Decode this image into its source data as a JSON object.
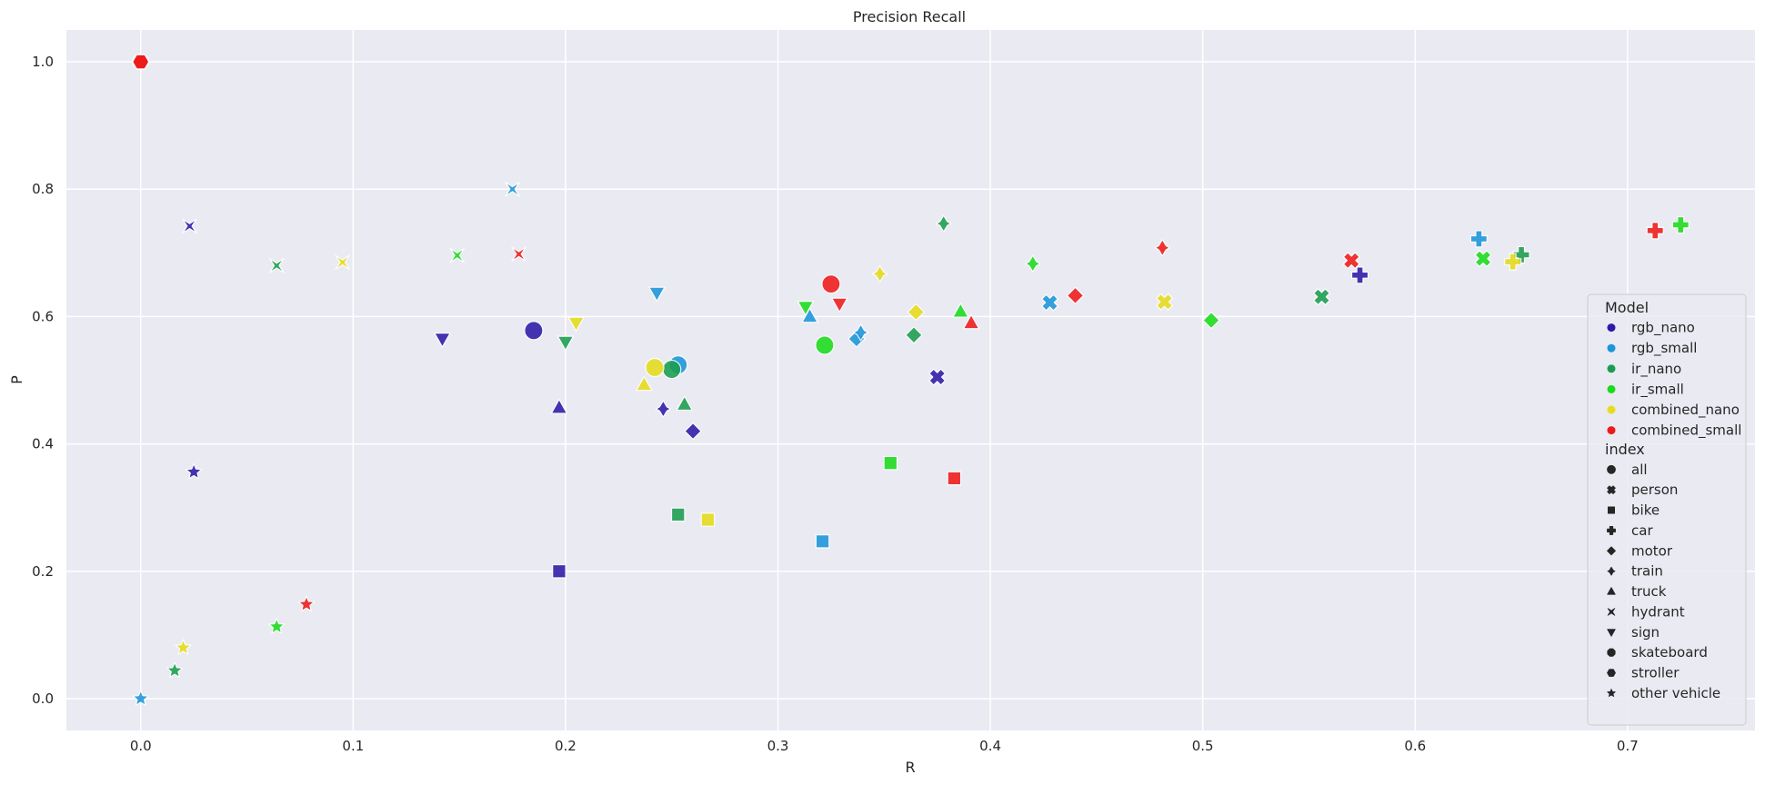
{
  "chart_data": {
    "type": "scatter",
    "title": "Precision Recall",
    "xlabel": "R",
    "ylabel": "P",
    "xlim": [
      -0.035,
      0.76
    ],
    "ylim": [
      -0.05,
      1.05
    ],
    "x_ticks": [
      "0.0",
      "0.1",
      "0.2",
      "0.3",
      "0.4",
      "0.5",
      "0.6",
      "0.7"
    ],
    "y_ticks": [
      "0.0",
      "0.2",
      "0.4",
      "0.6",
      "0.8",
      "1.0"
    ],
    "grid": true,
    "legend_position": "right",
    "hue_title": "Model",
    "style_title": "index",
    "models": [
      {
        "name": "rgb_nano",
        "color": "#2e1aa8"
      },
      {
        "name": "rgb_small",
        "color": "#1a96d9"
      },
      {
        "name": "ir_nano",
        "color": "#1a9e4e"
      },
      {
        "name": "ir_small",
        "color": "#1adc1a"
      },
      {
        "name": "combined_nano",
        "color": "#e6dc1a"
      },
      {
        "name": "combined_small",
        "color": "#ee1a1a"
      }
    ],
    "classes": [
      {
        "name": "all",
        "marker": "circle"
      },
      {
        "name": "person",
        "marker": "x"
      },
      {
        "name": "bike",
        "marker": "square"
      },
      {
        "name": "car",
        "marker": "plus"
      },
      {
        "name": "motor",
        "marker": "diamond"
      },
      {
        "name": "train",
        "marker": "thin-diamond"
      },
      {
        "name": "truck",
        "marker": "triangle-up"
      },
      {
        "name": "hydrant",
        "marker": "bowtie"
      },
      {
        "name": "sign",
        "marker": "triangle-down"
      },
      {
        "name": "skateboard",
        "marker": "octagon"
      },
      {
        "name": "stroller",
        "marker": "hexagon"
      },
      {
        "name": "other vehicle",
        "marker": "star"
      }
    ],
    "points": [
      {
        "model": "rgb_nano",
        "class": "all",
        "x": 0.185,
        "y": 0.578
      },
      {
        "model": "rgb_nano",
        "class": "person",
        "x": 0.375,
        "y": 0.505
      },
      {
        "model": "rgb_nano",
        "class": "bike",
        "x": 0.197,
        "y": 0.2
      },
      {
        "model": "rgb_nano",
        "class": "car",
        "x": 0.574,
        "y": 0.665
      },
      {
        "model": "rgb_nano",
        "class": "motor",
        "x": 0.26,
        "y": 0.42
      },
      {
        "model": "rgb_nano",
        "class": "train",
        "x": 0.246,
        "y": 0.455
      },
      {
        "model": "rgb_nano",
        "class": "truck",
        "x": 0.197,
        "y": 0.457
      },
      {
        "model": "rgb_nano",
        "class": "hydrant",
        "x": 0.023,
        "y": 0.742
      },
      {
        "model": "rgb_nano",
        "class": "sign",
        "x": 0.142,
        "y": 0.565
      },
      {
        "model": "rgb_nano",
        "class": "skateboard",
        "x": 0.0,
        "y": 1.0
      },
      {
        "model": "rgb_nano",
        "class": "stroller",
        "x": 0.0,
        "y": 1.0
      },
      {
        "model": "rgb_nano",
        "class": "other vehicle",
        "x": 0.025,
        "y": 0.356
      },
      {
        "model": "rgb_small",
        "class": "all",
        "x": 0.253,
        "y": 0.524
      },
      {
        "model": "rgb_small",
        "class": "person",
        "x": 0.428,
        "y": 0.622
      },
      {
        "model": "rgb_small",
        "class": "bike",
        "x": 0.321,
        "y": 0.247
      },
      {
        "model": "rgb_small",
        "class": "car",
        "x": 0.63,
        "y": 0.722
      },
      {
        "model": "rgb_small",
        "class": "motor",
        "x": 0.337,
        "y": 0.565
      },
      {
        "model": "rgb_small",
        "class": "train",
        "x": 0.339,
        "y": 0.575
      },
      {
        "model": "rgb_small",
        "class": "truck",
        "x": 0.315,
        "y": 0.6
      },
      {
        "model": "rgb_small",
        "class": "hydrant",
        "x": 0.175,
        "y": 0.8
      },
      {
        "model": "rgb_small",
        "class": "sign",
        "x": 0.243,
        "y": 0.637
      },
      {
        "model": "rgb_small",
        "class": "skateboard",
        "x": 0.0,
        "y": 1.0
      },
      {
        "model": "rgb_small",
        "class": "stroller",
        "x": 0.0,
        "y": 1.0
      },
      {
        "model": "rgb_small",
        "class": "other vehicle",
        "x": 0.0,
        "y": 0.0
      },
      {
        "model": "ir_nano",
        "class": "all",
        "x": 0.25,
        "y": 0.517
      },
      {
        "model": "ir_nano",
        "class": "person",
        "x": 0.556,
        "y": 0.631
      },
      {
        "model": "ir_nano",
        "class": "bike",
        "x": 0.253,
        "y": 0.289
      },
      {
        "model": "ir_nano",
        "class": "car",
        "x": 0.65,
        "y": 0.697
      },
      {
        "model": "ir_nano",
        "class": "motor",
        "x": 0.364,
        "y": 0.571
      },
      {
        "model": "ir_nano",
        "class": "train",
        "x": 0.378,
        "y": 0.746
      },
      {
        "model": "ir_nano",
        "class": "truck",
        "x": 0.256,
        "y": 0.462
      },
      {
        "model": "ir_nano",
        "class": "hydrant",
        "x": 0.064,
        "y": 0.68
      },
      {
        "model": "ir_nano",
        "class": "sign",
        "x": 0.2,
        "y": 0.56
      },
      {
        "model": "ir_nano",
        "class": "skateboard",
        "x": 0.0,
        "y": 1.0
      },
      {
        "model": "ir_nano",
        "class": "stroller",
        "x": 0.0,
        "y": 1.0
      },
      {
        "model": "ir_nano",
        "class": "other vehicle",
        "x": 0.016,
        "y": 0.044
      },
      {
        "model": "ir_small",
        "class": "all",
        "x": 0.322,
        "y": 0.555
      },
      {
        "model": "ir_small",
        "class": "person",
        "x": 0.632,
        "y": 0.691
      },
      {
        "model": "ir_small",
        "class": "bike",
        "x": 0.353,
        "y": 0.37
      },
      {
        "model": "ir_small",
        "class": "car",
        "x": 0.725,
        "y": 0.744
      },
      {
        "model": "ir_small",
        "class": "motor",
        "x": 0.504,
        "y": 0.594
      },
      {
        "model": "ir_small",
        "class": "train",
        "x": 0.42,
        "y": 0.683
      },
      {
        "model": "ir_small",
        "class": "truck",
        "x": 0.386,
        "y": 0.608
      },
      {
        "model": "ir_small",
        "class": "hydrant",
        "x": 0.149,
        "y": 0.696
      },
      {
        "model": "ir_small",
        "class": "sign",
        "x": 0.313,
        "y": 0.615
      },
      {
        "model": "ir_small",
        "class": "skateboard",
        "x": 0.0,
        "y": 1.0
      },
      {
        "model": "ir_small",
        "class": "stroller",
        "x": 0.0,
        "y": 1.0
      },
      {
        "model": "ir_small",
        "class": "other vehicle",
        "x": 0.064,
        "y": 0.113
      },
      {
        "model": "combined_nano",
        "class": "all",
        "x": 0.242,
        "y": 0.52
      },
      {
        "model": "combined_nano",
        "class": "person",
        "x": 0.482,
        "y": 0.623
      },
      {
        "model": "combined_nano",
        "class": "bike",
        "x": 0.267,
        "y": 0.281
      },
      {
        "model": "combined_nano",
        "class": "car",
        "x": 0.646,
        "y": 0.686
      },
      {
        "model": "combined_nano",
        "class": "motor",
        "x": 0.365,
        "y": 0.607
      },
      {
        "model": "combined_nano",
        "class": "train",
        "x": 0.348,
        "y": 0.667
      },
      {
        "model": "combined_nano",
        "class": "truck",
        "x": 0.237,
        "y": 0.493
      },
      {
        "model": "combined_nano",
        "class": "hydrant",
        "x": 0.095,
        "y": 0.685
      },
      {
        "model": "combined_nano",
        "class": "sign",
        "x": 0.205,
        "y": 0.59
      },
      {
        "model": "combined_nano",
        "class": "skateboard",
        "x": 0.0,
        "y": 1.0
      },
      {
        "model": "combined_nano",
        "class": "stroller",
        "x": 0.0,
        "y": 1.0
      },
      {
        "model": "combined_nano",
        "class": "other vehicle",
        "x": 0.02,
        "y": 0.08
      },
      {
        "model": "combined_small",
        "class": "all",
        "x": 0.325,
        "y": 0.651
      },
      {
        "model": "combined_small",
        "class": "person",
        "x": 0.57,
        "y": 0.688
      },
      {
        "model": "combined_small",
        "class": "bike",
        "x": 0.383,
        "y": 0.346
      },
      {
        "model": "combined_small",
        "class": "car",
        "x": 0.713,
        "y": 0.735
      },
      {
        "model": "combined_small",
        "class": "motor",
        "x": 0.44,
        "y": 0.633
      },
      {
        "model": "combined_small",
        "class": "train",
        "x": 0.481,
        "y": 0.708
      },
      {
        "model": "combined_small",
        "class": "truck",
        "x": 0.391,
        "y": 0.59
      },
      {
        "model": "combined_small",
        "class": "hydrant",
        "x": 0.178,
        "y": 0.698
      },
      {
        "model": "combined_small",
        "class": "sign",
        "x": 0.329,
        "y": 0.62
      },
      {
        "model": "combined_small",
        "class": "skateboard",
        "x": 0.0,
        "y": 1.0
      },
      {
        "model": "combined_small",
        "class": "stroller",
        "x": 0.0,
        "y": 1.0
      },
      {
        "model": "combined_small",
        "class": "other vehicle",
        "x": 0.078,
        "y": 0.148
      }
    ]
  }
}
